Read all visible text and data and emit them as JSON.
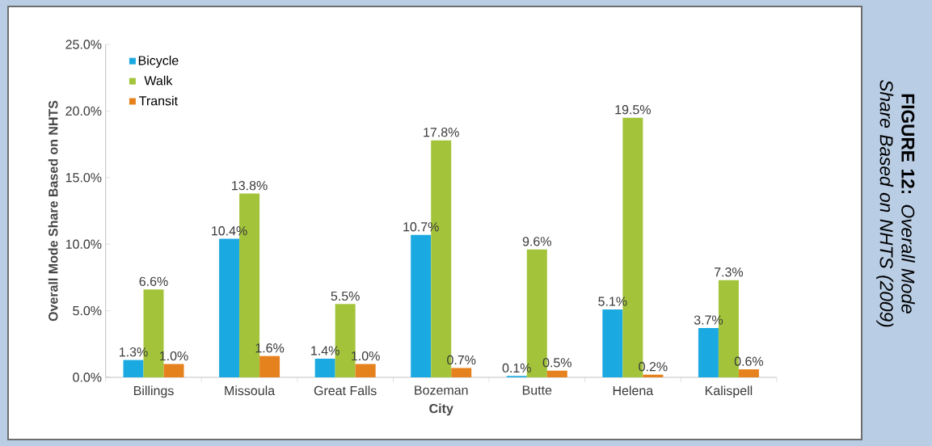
{
  "chart_data": {
    "type": "bar",
    "title": "**FIGURE 12:** *Overall Mode Share Based on NHTS (2009)*",
    "xlabel": "City",
    "ylabel": "Overall Mode Share Based on NHTS",
    "categories": [
      "Billings",
      "Missoula",
      "Great Falls",
      "Bozeman",
      "Butte",
      "Helena",
      "Kalispell"
    ],
    "series": [
      {
        "name": "Bicycle",
        "color": "#1ba9e1",
        "values": [
          1.3,
          10.4,
          1.4,
          10.7,
          0.1,
          5.1,
          3.7
        ],
        "value_labels": [
          "1.3%",
          "10.4%",
          "1.4%",
          "10.7%",
          "0.1%",
          "5.1%",
          "3.7%"
        ]
      },
      {
        "name": "Walk",
        "color": "#a3c43a",
        "values": [
          6.6,
          13.8,
          5.5,
          17.8,
          9.6,
          19.5,
          7.3
        ],
        "value_labels": [
          "6.6%",
          "13.8%",
          "5.5%",
          "17.8%",
          "9.6%",
          "19.5%",
          "7.3%"
        ]
      },
      {
        "name": "Transit",
        "color": "#e6821e",
        "values": [
          1.0,
          1.6,
          1.0,
          0.7,
          0.5,
          0.2,
          0.6
        ],
        "value_labels": [
          "1.0%",
          "1.6%",
          "1.0%",
          "0.7%",
          "0.5%",
          "0.2%",
          "0.6%"
        ]
      }
    ],
    "ylim": [
      0,
      25
    ],
    "yticks": [
      {
        "value": 0,
        "label": "0.0%"
      },
      {
        "value": 5,
        "label": "5.0%"
      },
      {
        "value": 10,
        "label": "10.0%"
      },
      {
        "value": 15,
        "label": "15.0%"
      },
      {
        "value": 20,
        "label": "20.0%"
      },
      {
        "value": 25,
        "label": "25.0%"
      }
    ],
    "legend": "top left",
    "grid": false
  }
}
